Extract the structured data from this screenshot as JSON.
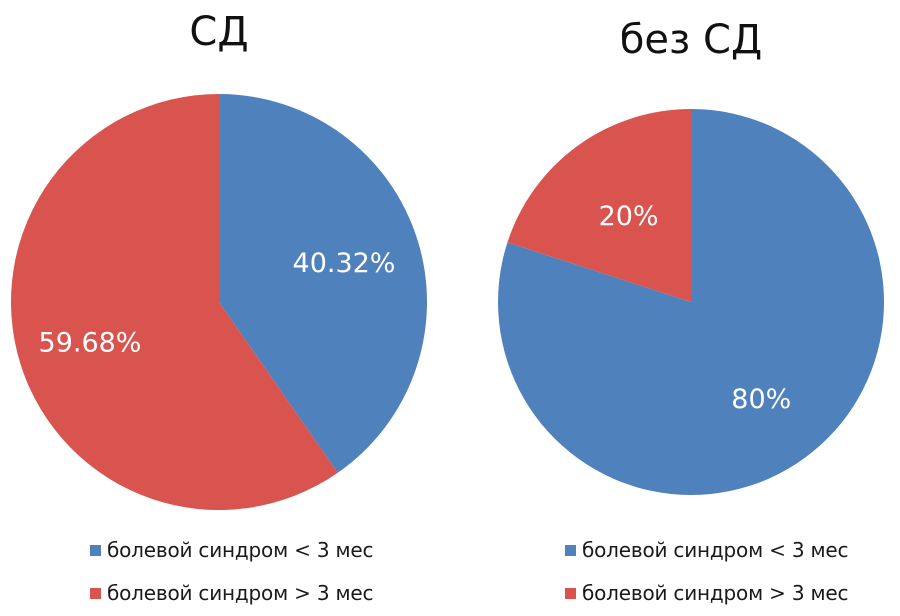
{
  "colors": {
    "blue": "#4F81BD",
    "red": "#D9534F"
  },
  "chart_data": [
    {
      "type": "pie",
      "title": "СД",
      "slices": [
        {
          "label": "болевой синдром < 3 мес",
          "value": 40.32,
          "display": "40.32%",
          "color": "#4F81BD"
        },
        {
          "label": "болевой синдром > 3 мес",
          "value": 59.68,
          "display": "59.68%",
          "color": "#D9534F"
        }
      ],
      "legend": [
        "болевой синдром < 3 мес",
        "болевой синдром > 3 мес"
      ],
      "legend_position": "bottom"
    },
    {
      "type": "pie",
      "title": "без СД",
      "slices": [
        {
          "label": "болевой синдром < 3 мес",
          "value": 80,
          "display": "80%",
          "color": "#4F81BD"
        },
        {
          "label": "болевой синдром > 3 мес",
          "value": 20,
          "display": "20%",
          "color": "#D9534F"
        }
      ],
      "legend": [
        "болевой синдром < 3 мес",
        "болевой синдром > 3 мес"
      ],
      "legend_position": "bottom"
    }
  ]
}
